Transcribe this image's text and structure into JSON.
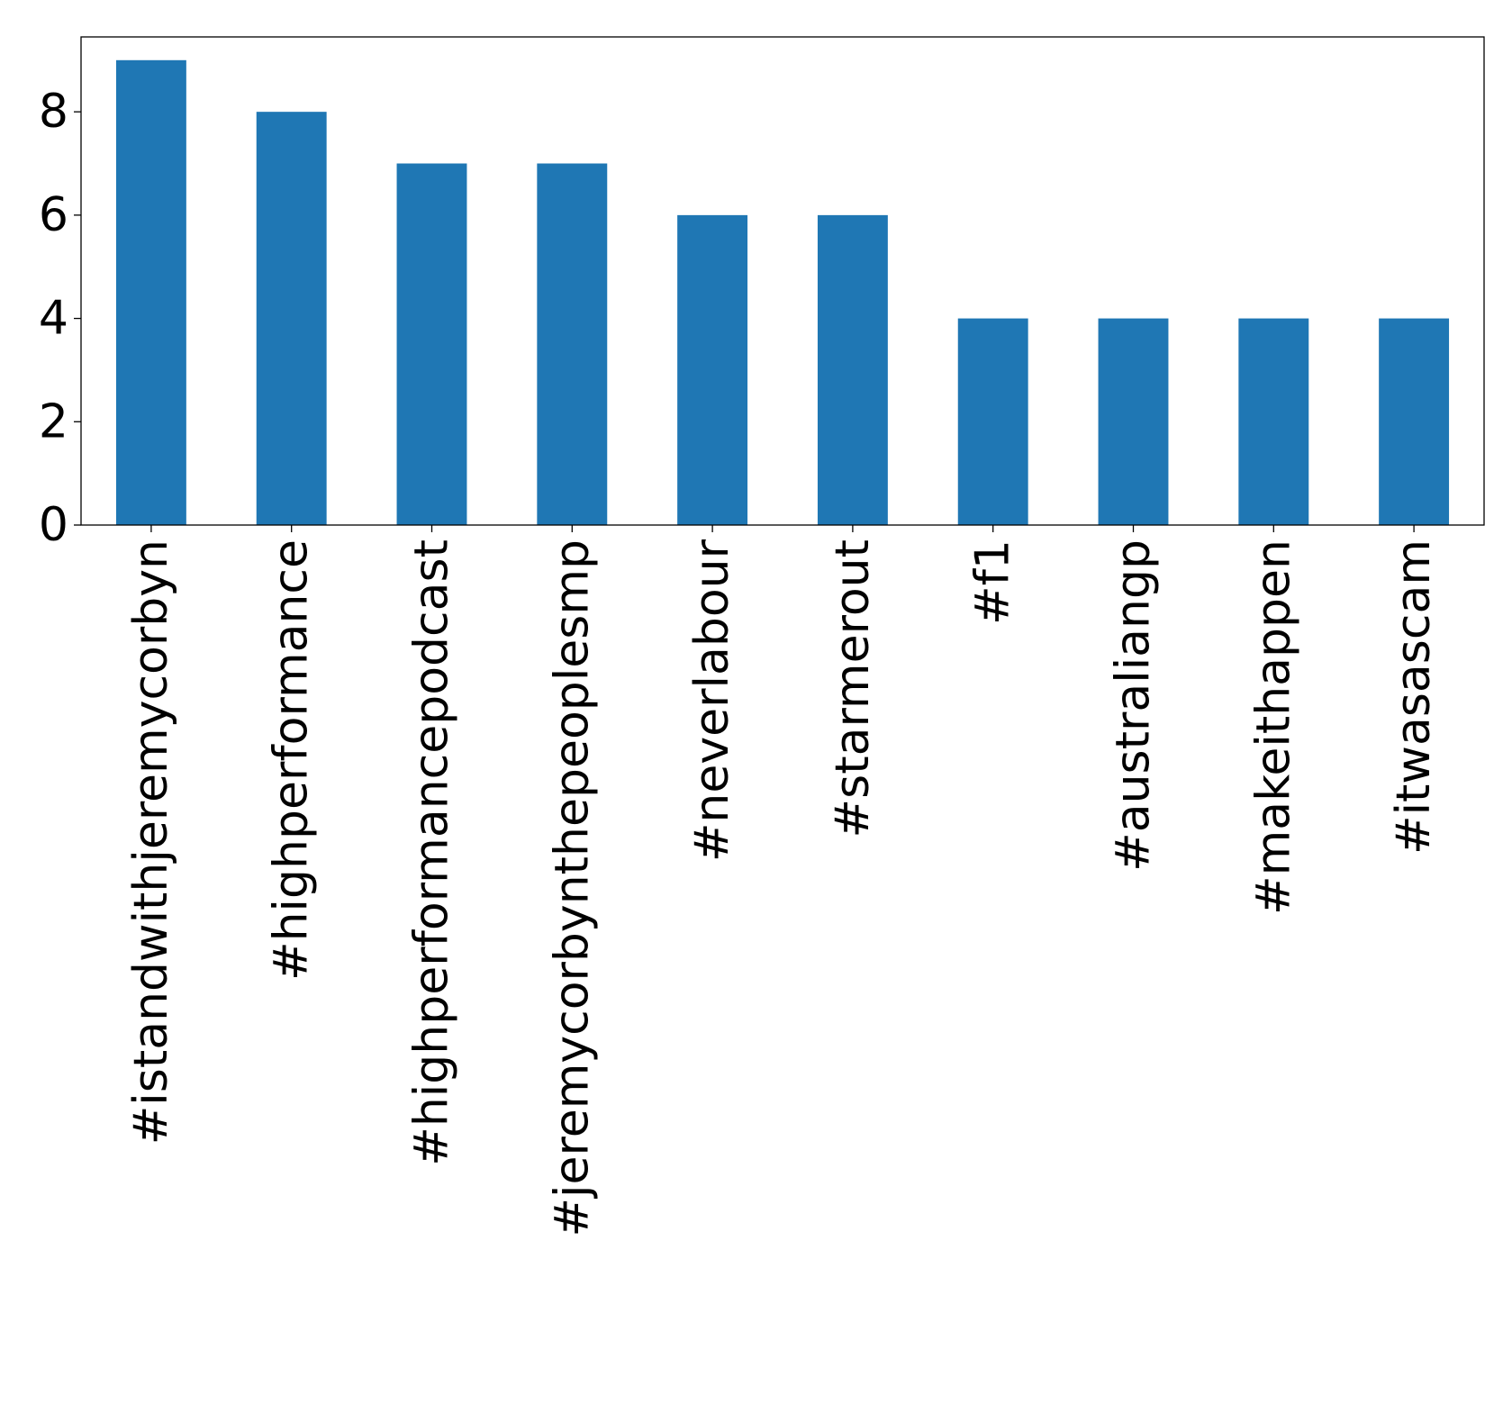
{
  "chart_data": {
    "type": "bar",
    "title": "",
    "xlabel": "",
    "ylabel": "",
    "categories": [
      "#istandwithjeremycorbyn",
      "#highperformance",
      "#highperformancepodcast",
      "#jeremycorbynthepeoplesmp",
      "#neverlabour",
      "#starmerout",
      "#f1",
      "#australiangp",
      "#makeithappen",
      "#itwasascam"
    ],
    "values": [
      9,
      8,
      7,
      7,
      6,
      6,
      4,
      4,
      4,
      4
    ],
    "ylim": [
      0,
      9.45
    ],
    "yticks": [
      0,
      2,
      4,
      6,
      8
    ],
    "bar_color": "#1f77b4",
    "grid": false,
    "legend": "none"
  }
}
